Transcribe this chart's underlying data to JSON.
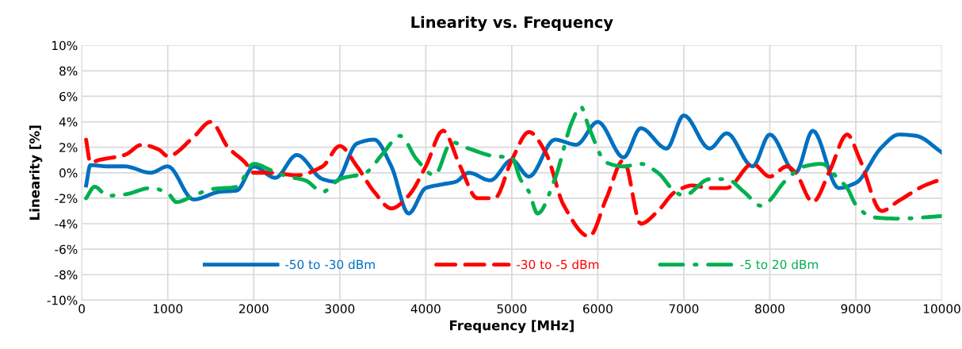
{
  "chart_data": {
    "type": "line",
    "title": "Linearity vs. Frequency",
    "xlabel": "Frequency [MHz]",
    "ylabel": "Linearity [%]",
    "xlim": [
      0,
      10000
    ],
    "xticks": [
      0,
      1000,
      2000,
      3000,
      4000,
      5000,
      6000,
      7000,
      8000,
      9000,
      10000
    ],
    "ylim": [
      -10,
      10
    ],
    "yticks": [
      {
        "value": -10,
        "label": "-10%"
      },
      {
        "value": -8,
        "label": "-8%"
      },
      {
        "value": -6,
        "label": "-6%"
      },
      {
        "value": -4,
        "label": "-4%"
      },
      {
        "value": -2,
        "label": "-2%"
      },
      {
        "value": 0,
        "label": "0%"
      },
      {
        "value": 2,
        "label": "2%"
      },
      {
        "value": 4,
        "label": "4%"
      },
      {
        "value": 6,
        "label": "6%"
      },
      {
        "value": 8,
        "label": "8%"
      },
      {
        "value": 10,
        "label": "10%"
      }
    ],
    "grid": true,
    "legend": "bottom",
    "marker": "none",
    "series": [
      {
        "name": "-50 to -30 dBm",
        "color": "#0070c0",
        "line_style": "solid",
        "x": [
          50,
          100,
          300,
          500,
          800,
          1000,
          1300,
          1600,
          1800,
          2000,
          2250,
          2500,
          2800,
          2950,
          3200,
          3400,
          3600,
          3800,
          4000,
          4200,
          4350,
          4500,
          4750,
          5000,
          5200,
          5500,
          5750,
          6000,
          6300,
          6500,
          6800,
          7000,
          7300,
          7500,
          7800,
          8000,
          8300,
          8500,
          8800,
          9000,
          9300,
          9500,
          9700,
          10000
        ],
        "values": [
          -1.0,
          0.6,
          0.5,
          0.5,
          0.0,
          0.5,
          -2.1,
          -1.5,
          -1.4,
          0.5,
          -0.4,
          1.4,
          -0.5,
          -0.7,
          2.3,
          2.6,
          0.5,
          -3.2,
          -1.2,
          -0.9,
          -0.7,
          0.0,
          -0.6,
          1.0,
          -0.3,
          2.6,
          2.2,
          4.0,
          1.2,
          3.5,
          1.9,
          4.5,
          1.9,
          3.1,
          0.5,
          3.0,
          0.0,
          3.3,
          -1.2,
          -0.8,
          2.0,
          3.0,
          2.9,
          1.6
        ]
      },
      {
        "name": "-30 to -5 dBm",
        "color": "#ff0000",
        "line_style": "dashed",
        "x": [
          50,
          100,
          200,
          500,
          700,
          900,
          1000,
          1300,
          1500,
          1700,
          1900,
          2000,
          2200,
          2500,
          2800,
          3000,
          3200,
          3400,
          3600,
          3800,
          4000,
          4200,
          4400,
          4600,
          4800,
          5000,
          5200,
          5400,
          5600,
          5900,
          6100,
          6300,
          6500,
          6700,
          6900,
          7100,
          7300,
          7500,
          7800,
          8000,
          8200,
          8300,
          8500,
          8700,
          8900,
          9050,
          9300,
          9500,
          9800,
          10000
        ],
        "values": [
          2.6,
          0.8,
          1.0,
          1.4,
          2.2,
          1.8,
          1.3,
          2.8,
          4.0,
          2.0,
          0.8,
          0.0,
          0.0,
          -0.2,
          0.5,
          2.1,
          0.5,
          -1.5,
          -2.8,
          -1.8,
          0.5,
          3.3,
          0.5,
          -2.0,
          -2.0,
          1.0,
          3.2,
          1.5,
          -2.5,
          -5.0,
          -2.0,
          1.0,
          -4.0,
          -3.0,
          -1.5,
          -1.0,
          -1.2,
          -1.2,
          0.7,
          -0.3,
          0.5,
          0.0,
          -2.3,
          0.2,
          3.0,
          1.0,
          -3.0,
          -2.2,
          -1.0,
          -0.5
        ]
      },
      {
        "name": "-5 to 20 dBm",
        "color": "#00b050",
        "line_style": "dashdot",
        "x": [
          50,
          150,
          300,
          500,
          800,
          1000,
          1100,
          1300,
          1500,
          1800,
          2000,
          2200,
          2400,
          2600,
          2800,
          3000,
          3300,
          3500,
          3700,
          3900,
          4100,
          4300,
          4500,
          4800,
          5000,
          5100,
          5200,
          5300,
          5500,
          5700,
          5800,
          5900,
          6100,
          6300,
          6500,
          6700,
          6900,
          7000,
          7300,
          7500,
          7700,
          7900,
          8200,
          8400,
          8600,
          8800,
          8900,
          9000,
          9200,
          9500,
          10000
        ],
        "values": [
          -2.0,
          -1.1,
          -1.8,
          -1.7,
          -1.2,
          -1.6,
          -2.3,
          -1.8,
          -1.3,
          -1.1,
          0.7,
          0.2,
          -0.3,
          -0.6,
          -1.5,
          -0.5,
          0.0,
          1.5,
          2.9,
          1.0,
          -0.2,
          2.4,
          1.9,
          1.3,
          1.2,
          -0.5,
          -1.5,
          -3.2,
          -0.5,
          4.0,
          5.2,
          3.5,
          0.8,
          0.5,
          0.7,
          0.0,
          -1.5,
          -1.8,
          -0.5,
          -0.5,
          -1.5,
          -2.6,
          -0.5,
          0.5,
          0.7,
          -0.5,
          -1.2,
          -2.5,
          -3.5,
          -3.6,
          -3.4
        ]
      }
    ]
  }
}
